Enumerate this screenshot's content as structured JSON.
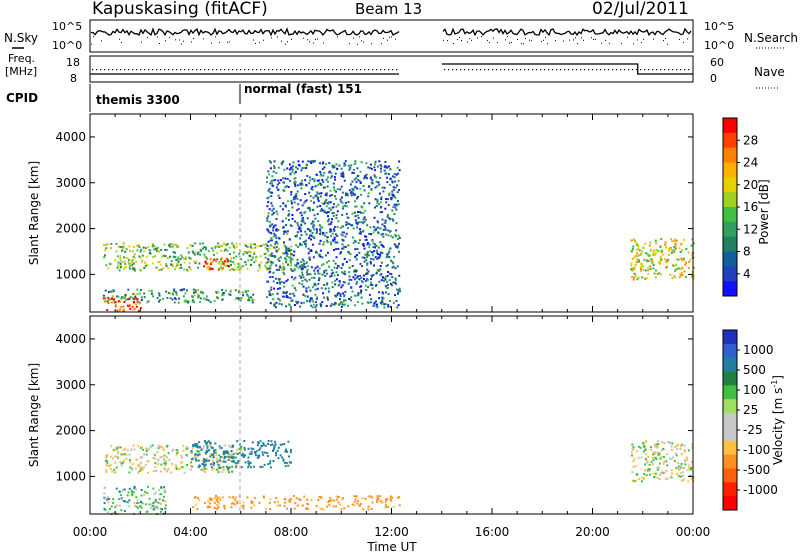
{
  "header": {
    "site": "Kapuskasing (fitACF)",
    "beam": "Beam 13",
    "date": "02/Jul/2011"
  },
  "strips": {
    "nsky_label": "N.Sky",
    "nsky_ticks": [
      "10^5",
      "10^0"
    ],
    "nsky_right_ticks": [
      "10^5",
      "10^0"
    ],
    "nsearch_label": "N.Search",
    "freq_label_1": "Freq.",
    "freq_label_2": "[MHz]",
    "freq_ticks": [
      "18",
      "8"
    ],
    "nave_ticks": [
      "60",
      "0"
    ],
    "nave_label": "Nave",
    "cpid_label": "CPID",
    "cpid_segments": [
      {
        "name": "themis 3300",
        "start_h": 0,
        "end_h": 6
      },
      {
        "name": "normal (fast) 151",
        "start_h": 6,
        "end_h": 24
      }
    ]
  },
  "axes": {
    "ylabel": "Slant Range [km]",
    "xlabel": "Time UT",
    "xticks": [
      "00:00",
      "04:00",
      "08:00",
      "12:00",
      "16:00",
      "20:00",
      "00:00"
    ],
    "yticks": [
      "1000",
      "2000",
      "3000",
      "4000"
    ]
  },
  "colorbars": {
    "power": {
      "label": "Power [dB]",
      "ticks": [
        "28",
        "24",
        "20",
        "16",
        "12",
        "8",
        "4"
      ],
      "colors": [
        "#ff0000",
        "#ff4000",
        "#ff8000",
        "#ffb000",
        "#e8d000",
        "#a0d020",
        "#40c040",
        "#30a060",
        "#208060",
        "#1060a0",
        "#2040c0",
        "#1010ff"
      ]
    },
    "velocity": {
      "label": "Velocity [m s",
      "label_sup": "-1",
      "label_end": "]",
      "ticks": [
        "1000",
        "500",
        "100",
        "25",
        "-25",
        "-100",
        "-500",
        "-1000"
      ],
      "colors": [
        "#2030c0",
        "#3060d0",
        "#2080a0",
        "#208040",
        "#40c040",
        "#a0e060",
        "#c8c8c8",
        "#c8c8c8",
        "#ffc040",
        "#ff9020",
        "#ff6010",
        "#ff2000",
        "#ff0000"
      ]
    }
  },
  "chart_data": {
    "type": "heatmap",
    "title": "Kapuskasing (fitACF)",
    "xlabel": "Time UT",
    "ylabel": "Slant Range [km]",
    "xlim": [
      0,
      24
    ],
    "ylim": [
      180,
      4500
    ],
    "data_gap_hours": [
      12.3,
      14.0
    ],
    "power_regions_dB": [
      {
        "t": [
          0.5,
          2.0
        ],
        "range": [
          200,
          600
        ],
        "value": 28
      },
      {
        "t": [
          0.5,
          6.5
        ],
        "range": [
          400,
          700
        ],
        "value": 10
      },
      {
        "t": [
          0.5,
          8.0
        ],
        "range": [
          1100,
          1700
        ],
        "value": 14
      },
      {
        "t": [
          4.5,
          5.5
        ],
        "range": [
          1100,
          1400
        ],
        "value": 28
      },
      {
        "t": [
          7.0,
          12.3
        ],
        "range": [
          300,
          3500
        ],
        "value": 6
      },
      {
        "t": [
          21.5,
          24.0
        ],
        "range": [
          900,
          1800
        ],
        "value": 18
      }
    ],
    "velocity_regions_ms": [
      {
        "t": [
          0.5,
          3.0
        ],
        "range": [
          200,
          800
        ],
        "value": 50
      },
      {
        "t": [
          0.5,
          6.0
        ],
        "range": [
          1100,
          1700
        ],
        "value": 0
      },
      {
        "t": [
          4.0,
          8.0
        ],
        "range": [
          1200,
          1800
        ],
        "value": 200
      },
      {
        "t": [
          4.0,
          12.3
        ],
        "range": [
          300,
          600
        ],
        "value": -150
      },
      {
        "t": [
          21.5,
          24.0
        ],
        "range": [
          900,
          1800
        ],
        "value": 0
      }
    ]
  }
}
